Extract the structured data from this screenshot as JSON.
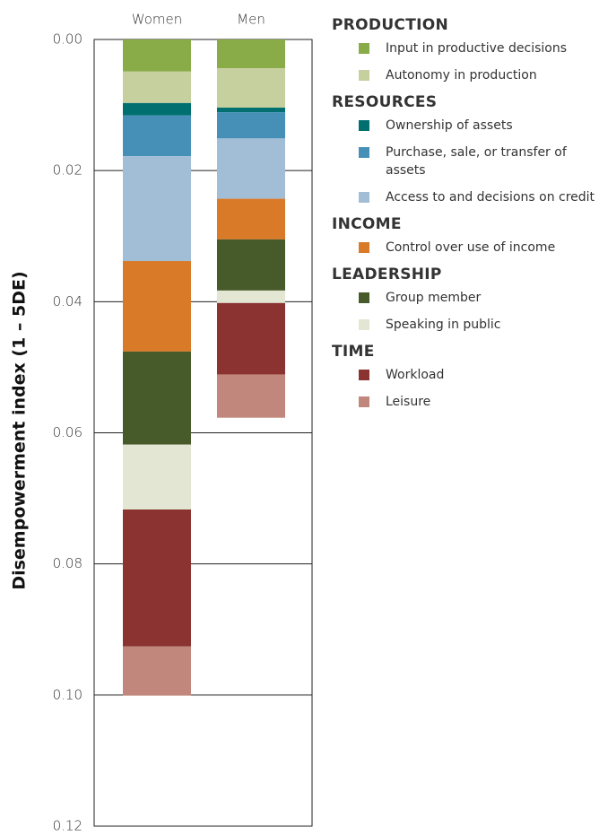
{
  "chart_data": {
    "type": "stacked_bar",
    "ylabel": "Disempowerment index (1 – 5DE)",
    "categories": [
      "Women",
      "Men"
    ],
    "ylim": [
      0,
      0.12
    ],
    "y_inverted": true,
    "yticks": [
      {
        "value": 0,
        "label": "0.00"
      },
      0.02,
      0.04,
      0.06,
      0.08,
      {
        "value": 0.1,
        "label": "0.10"
      },
      0.12
    ],
    "grid": true,
    "legend_position": "right",
    "series": [
      {
        "name": "Input in productive decisions",
        "group": "PRODUCTION",
        "color": "#8aac48",
        "values": [
          0.0049,
          0.0044
        ]
      },
      {
        "name": "Autonomy in production",
        "group": "PRODUCTION",
        "color": "#c5d09e",
        "values": [
          0.0048,
          0.006
        ]
      },
      {
        "name": "Ownership of assets",
        "group": "RESOURCES",
        "color": "#006f6f",
        "values": [
          0.0019,
          0.0007
        ]
      },
      {
        "name": "Purchase, sale, or transfer of assets",
        "group": "RESOURCES",
        "color": "#4690b8",
        "values": [
          0.0062,
          0.004
        ]
      },
      {
        "name": "Access to and decisions on credit",
        "group": "RESOURCES",
        "color": "#a2bdd6",
        "values": [
          0.016,
          0.0092
        ]
      },
      {
        "name": "Control over use of income",
        "group": "INCOME",
        "color": "#d97a29",
        "values": [
          0.0138,
          0.0062
        ]
      },
      {
        "name": "Group member",
        "group": "LEADERSHIP",
        "color": "#475a2a",
        "values": [
          0.0142,
          0.0078
        ]
      },
      {
        "name": "Speaking in public",
        "group": "LEADERSHIP",
        "color": "#e2e6d3",
        "values": [
          0.0099,
          0.0019
        ]
      },
      {
        "name": "Workload",
        "group": "TIME",
        "color": "#8b3330",
        "values": [
          0.0209,
          0.0109
        ]
      },
      {
        "name": "Leisure",
        "group": "TIME",
        "color": "#c1877c",
        "values": [
          0.0075,
          0.0066
        ]
      }
    ]
  }
}
